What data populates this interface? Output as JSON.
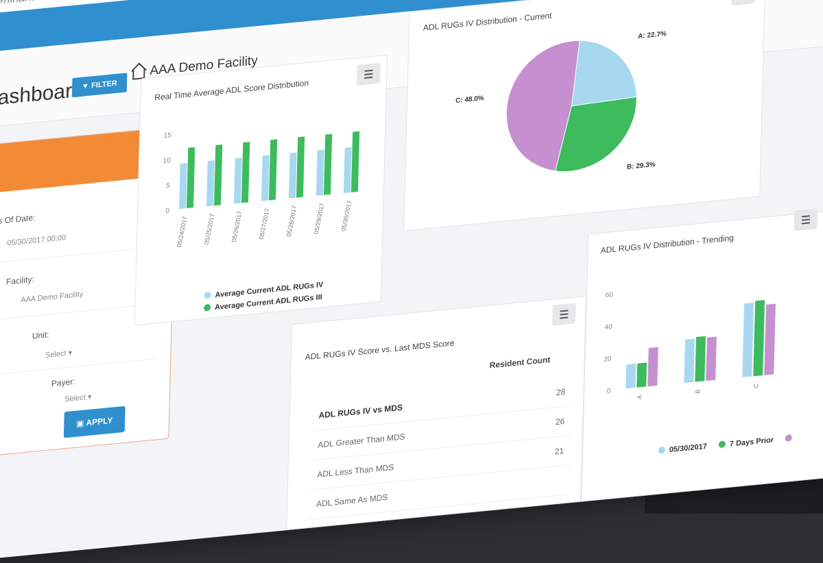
{
  "browser": {
    "url": "#/financial"
  },
  "header": {
    "page_title": "Dashboard",
    "filter_label": "FILTER",
    "facility_name": "AAA Demo Facility"
  },
  "filter_panel": {
    "as_of_date_label": "As Of Date:",
    "as_of_date_value": "05/30/2017 00:00",
    "facility_label": "Facility:",
    "facility_value": "AAA Demo Facility",
    "unit_label": "Unit:",
    "unit_value": "Select ▾",
    "payer_label": "Payer:",
    "payer_value": "Select ▾",
    "apply_label": "APPLY"
  },
  "colors": {
    "primary_blue": "#2f8fcf",
    "orange": "#f28a36",
    "series_light_blue": "#a7d8f0",
    "series_green": "#3dbb5d",
    "series_purple": "#c58fd0"
  },
  "icons": [
    "menu-icon",
    "home-icon",
    "calendar-icon",
    "filter-icon",
    "apply-icon"
  ],
  "adl_chart": {
    "title": "Real Time Average ADL Score Distribution",
    "chart_data": {
      "type": "bar",
      "categories": [
        "05/24/2017",
        "05/25/2017",
        "05/26/2017",
        "05/27/2017",
        "05/28/2017",
        "05/29/2017",
        "05/30/2017"
      ],
      "series": [
        {
          "name": "Average Current ADL RUGs IV",
          "values": [
            9,
            9,
            9,
            9,
            9,
            9,
            9
          ]
        },
        {
          "name": "Average Current ADL RUGs III",
          "values": [
            12,
            12,
            12,
            12,
            12,
            12,
            12
          ]
        }
      ],
      "yticks": [
        "0",
        "5",
        "10",
        "15"
      ],
      "ylim": [
        0,
        15
      ]
    }
  },
  "pie_chart": {
    "title": "ADL RUGs IV Distribution - Current",
    "chart_data": {
      "type": "pie",
      "slices": [
        {
          "label": "A: 22.7%",
          "value": 22.7,
          "color": "#a7d8f0"
        },
        {
          "label": "B: 29.3%",
          "value": 29.3,
          "color": "#3dbb5d"
        },
        {
          "label": "C: 48.0%",
          "value": 48.0,
          "color": "#c58fd0"
        }
      ]
    }
  },
  "score_table": {
    "title": "ADL RUGs IV Score vs. Last MDS Score",
    "col_header": "Resident Count",
    "section": "ADL RUGs IV vs MDS",
    "rows": [
      {
        "label": "",
        "count": "28"
      },
      {
        "label": "ADL Greater Than MDS",
        "count": "26"
      },
      {
        "label": "ADL Less Than MDS",
        "count": "21"
      },
      {
        "label": "ADL Same As MDS",
        "count": ""
      }
    ]
  },
  "trend_chart": {
    "title": "ADL RUGs IV Distribution - Trending",
    "chart_data": {
      "type": "bar",
      "categories": [
        "A",
        "B",
        "C"
      ],
      "series": [
        {
          "name": "05/30/2017",
          "values": [
            15,
            27,
            46
          ]
        },
        {
          "name": "7 Days Prior",
          "values": [
            15,
            28,
            47
          ]
        },
        {
          "name": "",
          "values": [
            24,
            27,
            44
          ]
        }
      ],
      "yticks": [
        "0",
        "20",
        "40",
        "60"
      ],
      "ylim": [
        0,
        60
      ]
    }
  }
}
